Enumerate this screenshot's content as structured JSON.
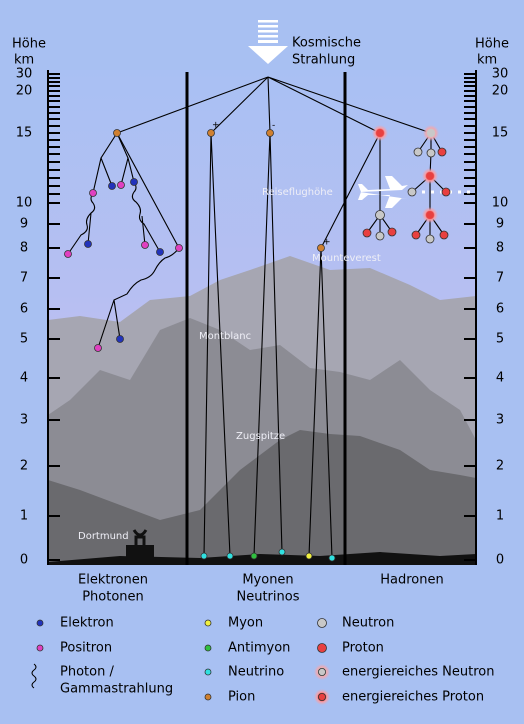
{
  "title_lines": [
    "Kosmische",
    "Strahlung"
  ],
  "axis_label_left": [
    "Höhe",
    "km"
  ],
  "axis_label_right": [
    "Höhe",
    "km"
  ],
  "ticks": [
    0,
    1,
    2,
    3,
    4,
    5,
    6,
    7,
    8,
    9,
    10,
    15,
    20,
    30
  ],
  "pion_charges": [
    "+",
    "-",
    "+"
  ],
  "places": [
    "Reiseflughöhe",
    "Mounteverest",
    "Montblanc",
    "Zugspitze",
    "Dortmund"
  ],
  "columns": [
    [
      "Elektronen",
      "Photonen"
    ],
    [
      "Myonen",
      "Neutrinos"
    ],
    [
      "Hadronen"
    ]
  ],
  "legend": [
    {
      "label": [
        "Elektron"
      ]
    },
    {
      "label": [
        "Positron"
      ]
    },
    {
      "label": [
        "Photon /",
        "Gammastrahlung"
      ]
    },
    {
      "label": [
        "Myon"
      ]
    },
    {
      "label": [
        "Antimyon"
      ]
    },
    {
      "label": [
        "Neutrino"
      ]
    },
    {
      "label": [
        "Pion"
      ]
    },
    {
      "label": [
        "Neutron"
      ]
    },
    {
      "label": [
        "Proton"
      ]
    },
    {
      "label": [
        "energiereiches Neutron"
      ]
    },
    {
      "label": [
        "energiereiches Proton"
      ]
    }
  ]
}
